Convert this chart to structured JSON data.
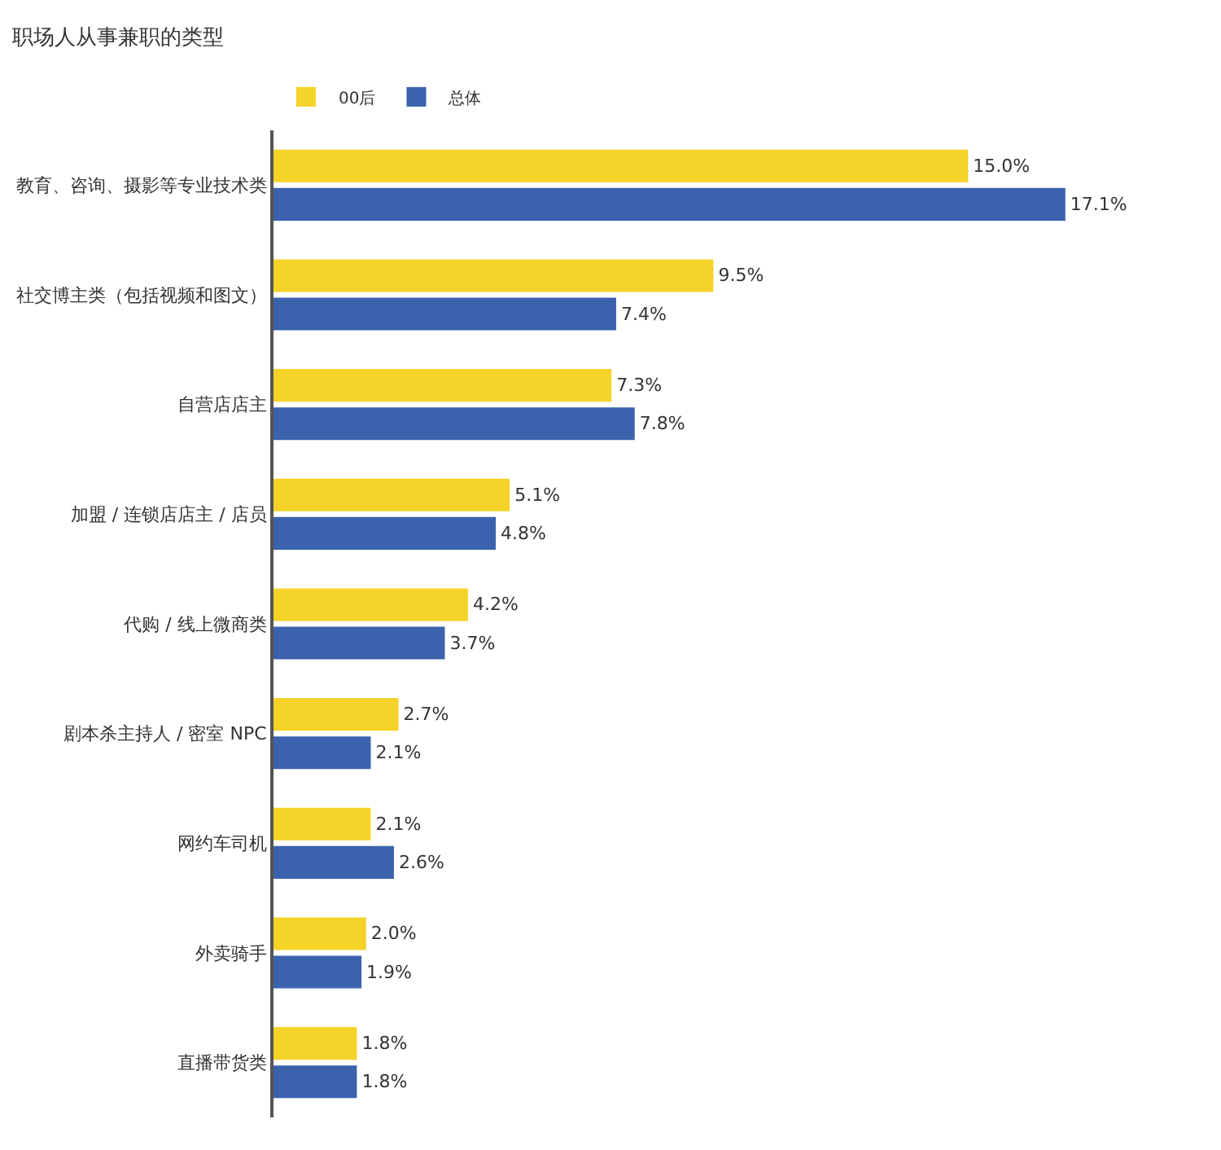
{
  "chart_data": {
    "type": "bar",
    "orientation": "horizontal",
    "title": "职场人从事兼职的类型",
    "categories": [
      "教育、咨询、摄影等专业技术类",
      "社交博主类（包括视频和图文）",
      "自营店店主",
      "加盟 / 连锁店店主 / 店员",
      "代购 / 线上微商类",
      "剧本杀主持人 / 密室 NPC",
      "网约车司机",
      "外卖骑手",
      "直播带货类"
    ],
    "series": [
      {
        "name": "00后",
        "color": "#f5d328",
        "values": [
          15.0,
          9.5,
          7.3,
          5.1,
          4.2,
          2.7,
          2.1,
          2.0,
          1.8
        ],
        "value_labels": [
          "15.0%",
          "9.5%",
          "7.3%",
          "5.1%",
          "4.2%",
          "2.7%",
          "2.1%",
          "2.0%",
          "1.8%"
        ]
      },
      {
        "name": "总体",
        "color": "#3a62ad",
        "values": [
          17.1,
          7.4,
          7.8,
          4.8,
          3.7,
          2.1,
          2.6,
          1.9,
          1.8
        ],
        "value_labels": [
          "17.1%",
          "7.4%",
          "7.8%",
          "4.8%",
          "3.7%",
          "2.1%",
          "2.6%",
          "1.9%",
          "1.8%"
        ]
      }
    ],
    "legend": "top left",
    "tick_labels": "y"
  }
}
